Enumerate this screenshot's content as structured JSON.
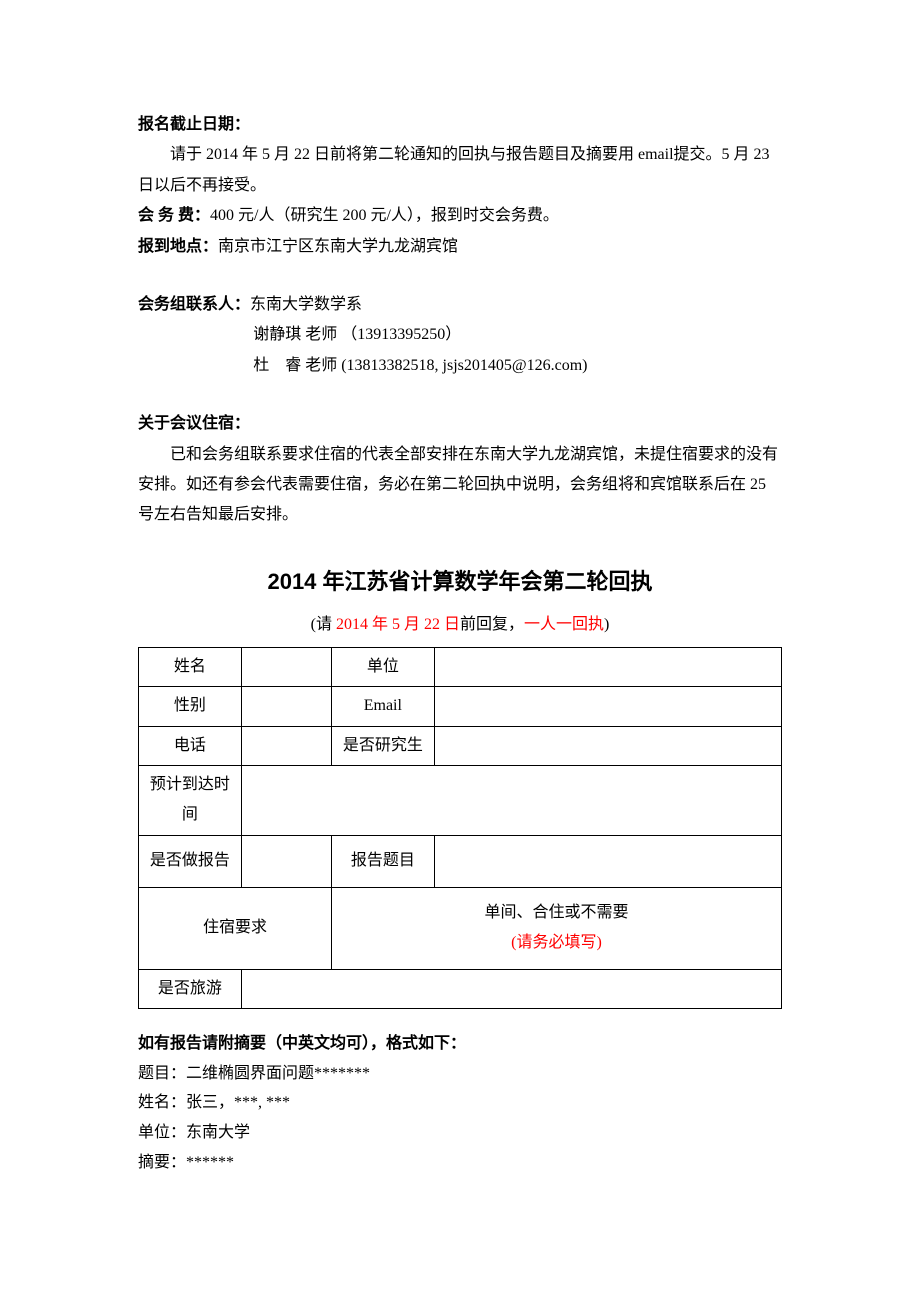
{
  "deadline": {
    "heading": "报名截止日期：",
    "line1": "请于 2014 年 5 月 22 日前将第二轮通知的回执与报告题目及摘要用 email提交。5 月 23 日以后不再接受。",
    "fee_label": "会 务 费：",
    "fee_text": "400 元/人（研究生 200 元/人），报到时交会务费。",
    "location_label": "报到地点：",
    "location_text": "南京市江宁区东南大学九龙湖宾馆"
  },
  "contact": {
    "heading": "会务组联系人：",
    "dept": "东南大学数学系",
    "person1_name": "谢静琪",
    "person1_title": "老师",
    "person1_phone": "（13913395250）",
    "person2_name": "杜　睿",
    "person2_title": "老师",
    "person2_info": "(13813382518, jsjs201405@126.com)"
  },
  "accommodation": {
    "heading": "关于会议住宿：",
    "body": "已和会务组联系要求住宿的代表全部安排在东南大学九龙湖宾馆，未提住宿要求的没有安排。如还有参会代表需要住宿，务必在第二轮回执中说明，会务组将和宾馆联系后在 25 号左右告知最后安排。"
  },
  "form": {
    "title": "2014 年江苏省计算数学年会第二轮回执",
    "subtitle_prefix": "(请 ",
    "subtitle_date": "2014 年 5 月 22 日",
    "subtitle_mid": "前回复，",
    "subtitle_suffix": "一人一回执",
    "subtitle_end": ")",
    "rows": {
      "name": "姓名",
      "unit": "单位",
      "gender": "性别",
      "email": "Email",
      "phone": "电话",
      "is_student": "是否研究生",
      "arrival": "预计到达时间",
      "do_report": "是否做报告",
      "report_title": "报告题目",
      "lodging": "住宿要求",
      "lodging_hint1": "单间、合住或不需要",
      "lodging_hint2": "(请务必填写)",
      "tour": "是否旅游"
    }
  },
  "footer": {
    "heading": "如有报告请附摘要（中英文均可），格式如下：",
    "line1": "题目：二维椭圆界面问题*******",
    "line2": "姓名：张三，***, ***",
    "line3": "单位：东南大学",
    "line4": "摘要：******"
  }
}
